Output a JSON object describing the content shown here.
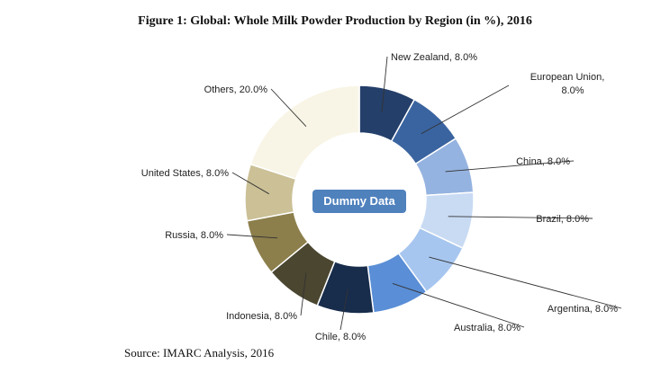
{
  "title": "Figure 1: Global: Whole Milk Powder Production by Region (in %), 2016",
  "source": "Source: IMARC Analysis, 2016",
  "watermark": "Dummy Data",
  "chart_data": {
    "type": "pie",
    "variant": "donut",
    "categories": [
      "New Zealand",
      "European Union",
      "China",
      "Brazil",
      "Argentina",
      "Australia",
      "Chile",
      "Indonesia",
      "Russia",
      "United States",
      "Others"
    ],
    "values": [
      8.0,
      8.0,
      8.0,
      8.0,
      8.0,
      8.0,
      8.0,
      8.0,
      8.0,
      8.0,
      20.0
    ],
    "labels": [
      "New Zealand, 8.0%",
      "European Union, 8.0%",
      "China, 8.0%",
      "Brazil, 8.0%",
      "Argentina, 8.0%",
      "Australia, 8.0%",
      "Chile, 8.0%",
      "Indonesia, 8.0%",
      "Russia, 8.0%",
      "United States, 8.0%",
      "Others, 20.0%"
    ],
    "colors": [
      "#243f6a",
      "#3a64a0",
      "#95b3e0",
      "#c9dbf3",
      "#a7c6ef",
      "#5a8ed6",
      "#182c4c",
      "#4a4630",
      "#8c7f4c",
      "#cbc096",
      "#f8f5e6"
    ]
  }
}
